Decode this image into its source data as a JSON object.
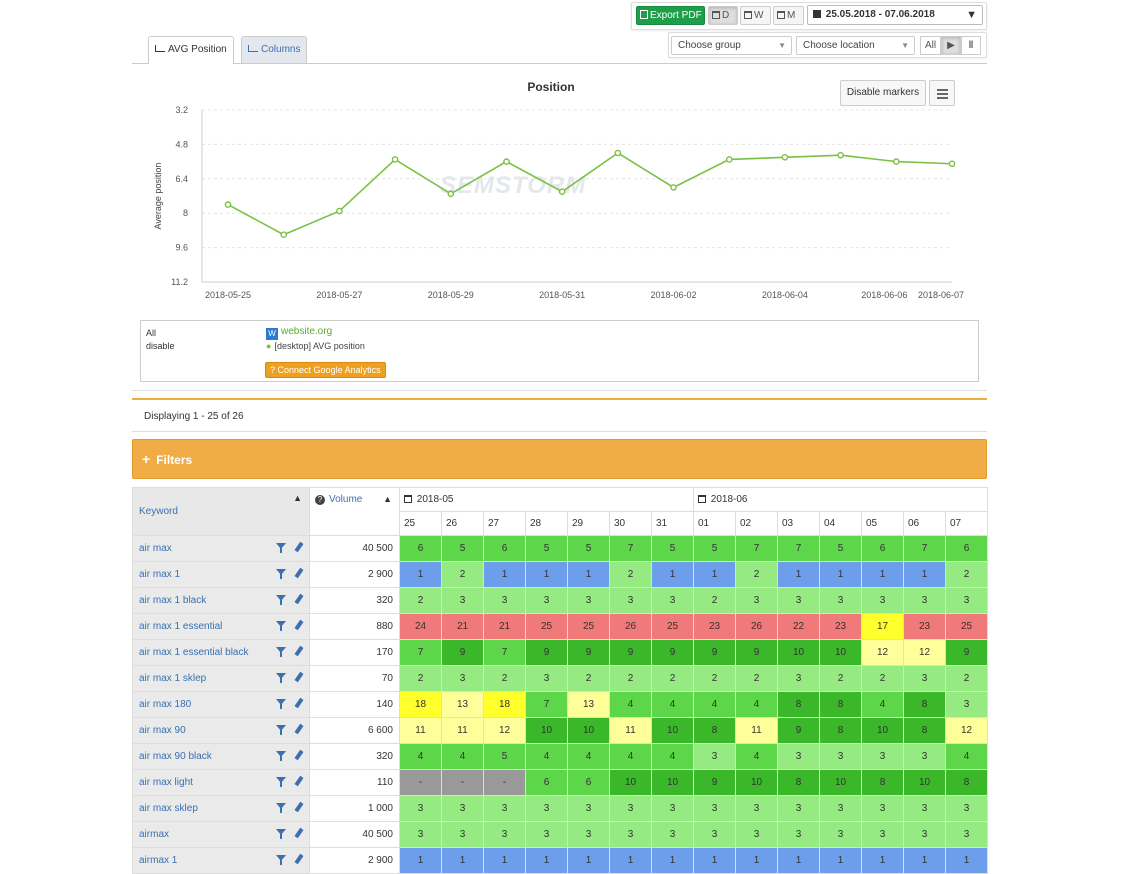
{
  "toolbar": {
    "export_pdf": "Export PDF",
    "period_day": "D",
    "period_week": "W",
    "period_month": "M",
    "date_range": "25.05.2018 - 07.06.2018",
    "group_placeholder": "Choose group",
    "location_placeholder": "Choose location",
    "all_label": "All"
  },
  "tabs": [
    {
      "label": "AVG Position",
      "active": true
    },
    {
      "label": "Columns",
      "active": false
    }
  ],
  "chart": {
    "disable_markers": "Disable markers"
  },
  "chart_data": {
    "type": "line",
    "title": "Position",
    "ylabel": "Average position",
    "xlabel": "",
    "y_reversed": true,
    "ylim": [
      3.2,
      11.2
    ],
    "y_ticks": [
      3.2,
      4.8,
      6.4,
      8,
      9.6,
      11.2
    ],
    "x_tick_labels": [
      "2018-05-25",
      "2018-05-27",
      "2018-05-29",
      "2018-05-31",
      "2018-06-02",
      "2018-06-04",
      "2018-06-06",
      "2018-06-07"
    ],
    "x": [
      "2018-05-25",
      "2018-05-26",
      "2018-05-27",
      "2018-05-28",
      "2018-05-29",
      "2018-05-30",
      "2018-05-31",
      "2018-06-01",
      "2018-06-02",
      "2018-06-03",
      "2018-06-04",
      "2018-06-05",
      "2018-06-06",
      "2018-06-07"
    ],
    "series": [
      {
        "name": "[desktop] AVG position",
        "color": "#7ac142",
        "values": [
          7.6,
          9.0,
          7.9,
          5.5,
          7.1,
          5.6,
          7.0,
          5.2,
          6.8,
          5.5,
          5.4,
          5.3,
          5.6,
          5.7
        ]
      }
    ],
    "grid": true,
    "watermark": "SEMSTORM"
  },
  "legend": {
    "all": "All",
    "disable": "disable",
    "site": "website.org",
    "series_label": "[desktop] AVG position",
    "connect_ga": "Connect Google Analytics"
  },
  "displaying": "Displaying 1 - 25 of 26",
  "filters_label": "Filters",
  "table": {
    "keyword_header": "Keyword",
    "volume_header": "Volume",
    "months": [
      {
        "label": "2018-05",
        "span": 7
      },
      {
        "label": "2018-06",
        "span": 7
      }
    ],
    "days": [
      "25",
      "26",
      "27",
      "28",
      "29",
      "30",
      "31",
      "01",
      "02",
      "03",
      "04",
      "05",
      "06",
      "07"
    ],
    "rows": [
      {
        "keyword": "air max",
        "volume": "40 500",
        "positions": [
          "6",
          "5",
          "6",
          "5",
          "5",
          "7",
          "5",
          "5",
          "7",
          "7",
          "5",
          "6",
          "7",
          "6"
        ]
      },
      {
        "keyword": "air max 1",
        "volume": "2 900",
        "positions": [
          "1",
          "2",
          "1",
          "1",
          "1",
          "2",
          "1",
          "1",
          "2",
          "1",
          "1",
          "1",
          "1",
          "2"
        ]
      },
      {
        "keyword": "air max 1 black",
        "volume": "320",
        "positions": [
          "2",
          "3",
          "3",
          "3",
          "3",
          "3",
          "3",
          "2",
          "3",
          "3",
          "3",
          "3",
          "3",
          "3"
        ]
      },
      {
        "keyword": "air max 1 essential",
        "volume": "880",
        "positions": [
          "24",
          "21",
          "21",
          "25",
          "25",
          "26",
          "25",
          "23",
          "26",
          "22",
          "23",
          "17",
          "23",
          "25"
        ]
      },
      {
        "keyword": "air max 1 essential black",
        "volume": "170",
        "positions": [
          "7",
          "9",
          "7",
          "9",
          "9",
          "9",
          "9",
          "9",
          "9",
          "10",
          "10",
          "12",
          "12",
          "9"
        ]
      },
      {
        "keyword": "air max 1 sklep",
        "volume": "70",
        "positions": [
          "2",
          "3",
          "2",
          "3",
          "2",
          "2",
          "2",
          "2",
          "2",
          "3",
          "2",
          "2",
          "3",
          "2"
        ]
      },
      {
        "keyword": "air max 180",
        "volume": "140",
        "positions": [
          "18",
          "13",
          "18",
          "7",
          "13",
          "4",
          "4",
          "4",
          "4",
          "8",
          "8",
          "4",
          "8",
          "3"
        ]
      },
      {
        "keyword": "air max 90",
        "volume": "6 600",
        "positions": [
          "11",
          "11",
          "12",
          "10",
          "10",
          "11",
          "10",
          "8",
          "11",
          "9",
          "8",
          "10",
          "8",
          "12"
        ]
      },
      {
        "keyword": "air max 90 black",
        "volume": "320",
        "positions": [
          "4",
          "4",
          "5",
          "4",
          "4",
          "4",
          "4",
          "3",
          "4",
          "3",
          "3",
          "3",
          "3",
          "4"
        ]
      },
      {
        "keyword": "air max light",
        "volume": "110",
        "positions": [
          "-",
          "-",
          "-",
          "6",
          "6",
          "10",
          "10",
          "9",
          "10",
          "8",
          "10",
          "8",
          "10",
          "8"
        ]
      },
      {
        "keyword": "air max sklep",
        "volume": "1 000",
        "positions": [
          "3",
          "3",
          "3",
          "3",
          "3",
          "3",
          "3",
          "3",
          "3",
          "3",
          "3",
          "3",
          "3",
          "3"
        ]
      },
      {
        "keyword": "airmax",
        "volume": "40 500",
        "positions": [
          "3",
          "3",
          "3",
          "3",
          "3",
          "3",
          "3",
          "3",
          "3",
          "3",
          "3",
          "3",
          "3",
          "3"
        ]
      },
      {
        "keyword": "airmax 1",
        "volume": "2 900",
        "positions": [
          "1",
          "1",
          "1",
          "1",
          "1",
          "1",
          "1",
          "1",
          "1",
          "1",
          "1",
          "1",
          "1",
          "1"
        ]
      }
    ]
  },
  "colors": {
    "pos_1": "#6d9eeb",
    "pos_2_3": "#96ea82",
    "pos_4_7": "#5ed64a",
    "pos_8_10": "#3bb82a",
    "pos_11_20": "#ffff88",
    "pos_11_13": "#ffff99",
    "pos_17_18": "#ffff2b",
    "pos_21_plus": "#f07979",
    "pos_none": "#999999"
  }
}
